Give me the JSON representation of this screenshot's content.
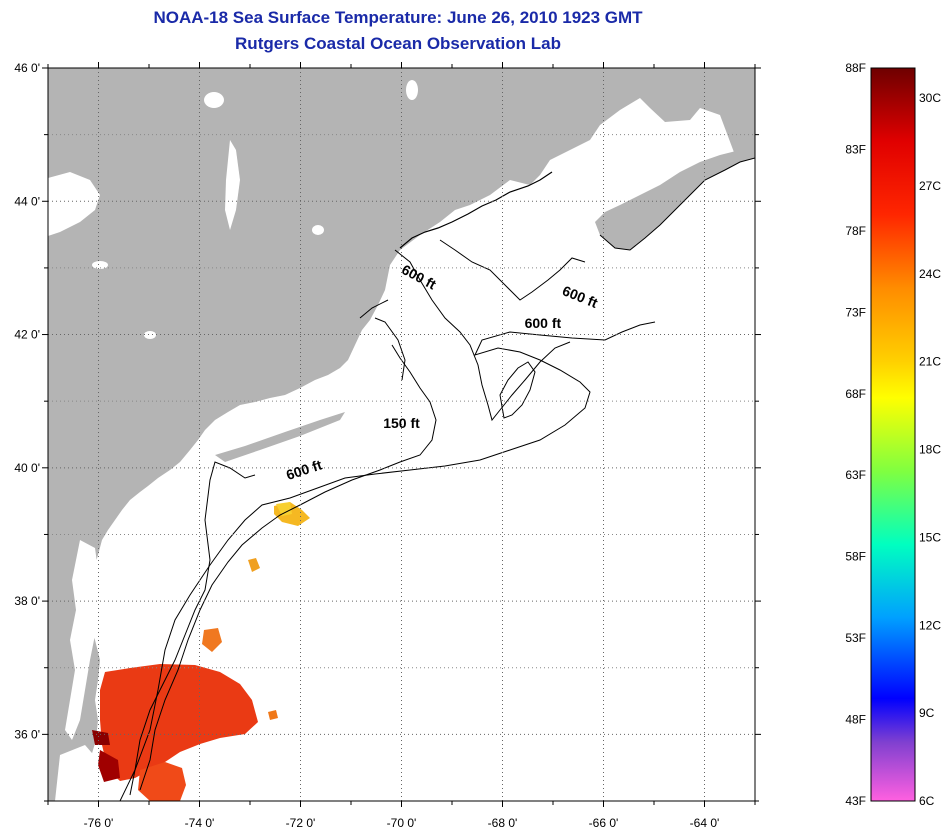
{
  "title_line1": "NOAA-18 Sea Surface Temperature:  June 26, 2010 1923 GMT",
  "title_line2": "Rutgers Coastal Ocean Observation Lab",
  "map": {
    "lon_range": [
      -77,
      -63
    ],
    "lat_range": [
      35,
      46
    ],
    "lat_ticks": [
      {
        "value": 46,
        "label": "46 0'"
      },
      {
        "value": 44,
        "label": "44 0'"
      },
      {
        "value": 42,
        "label": "42 0'"
      },
      {
        "value": 40,
        "label": "40 0'"
      },
      {
        "value": 38,
        "label": "38 0'"
      },
      {
        "value": 36,
        "label": "36 0'"
      }
    ],
    "lon_ticks": [
      {
        "value": -76,
        "label": "-76 0'"
      },
      {
        "value": -74,
        "label": "-74 0'"
      },
      {
        "value": -72,
        "label": "-72 0'"
      },
      {
        "value": -70,
        "label": "-70 0'"
      },
      {
        "value": -68,
        "label": "-68 0'"
      },
      {
        "value": -66,
        "label": "-66 0'"
      },
      {
        "value": -64,
        "label": "-64 0'"
      }
    ],
    "grid": true,
    "land_color": "#b4b4b4",
    "contour_labels": [
      {
        "text": "600 ft",
        "lon": -69.7,
        "lat": 42.8,
        "rotate": 28
      },
      {
        "text": "600 ft",
        "lon": -66.5,
        "lat": 42.5,
        "rotate": 22
      },
      {
        "text": "600 ft",
        "lon": -67.2,
        "lat": 42.1,
        "rotate": 0
      },
      {
        "text": "150 ft",
        "lon": -70.0,
        "lat": 40.6,
        "rotate": 0
      },
      {
        "text": "600 ft",
        "lon": -71.9,
        "lat": 39.9,
        "rotate": -18
      }
    ]
  },
  "colorbar": {
    "left_labels": [
      "88F",
      "83F",
      "78F",
      "73F",
      "68F",
      "63F",
      "58F",
      "53F",
      "48F",
      "43F"
    ],
    "right_labels": [
      "30C",
      "27C",
      "24C",
      "21C",
      "18C",
      "15C",
      "12C",
      "9C",
      "6C"
    ]
  }
}
